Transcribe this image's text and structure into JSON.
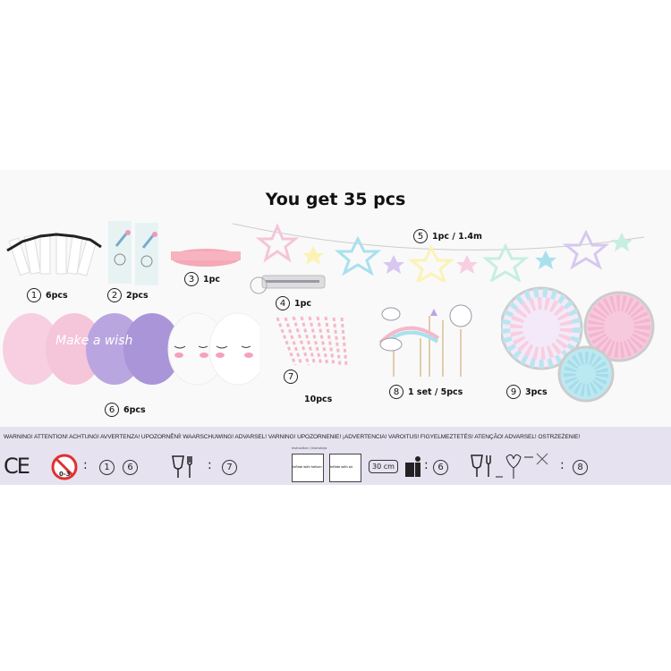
{
  "title": "You get 35 pcs",
  "items": [
    {
      "num": "1",
      "qty": "6pcs"
    },
    {
      "num": "2",
      "qty": "2pcs"
    },
    {
      "num": "3",
      "qty": "1pc"
    },
    {
      "num": "4",
      "qty": "1pc"
    },
    {
      "num": "5",
      "qty": "1pc / 1.4m"
    },
    {
      "num": "6",
      "qty": "6pcs"
    },
    {
      "num": "7",
      "qty": "10pcs"
    },
    {
      "num": "8",
      "qty": "1 set / 5pcs"
    },
    {
      "num": "9",
      "qty": "3pcs"
    }
  ],
  "stickers_label": "Stickers",
  "balloon_text": "Make a wish",
  "colors": {
    "pink": "#f7cfe0",
    "lilac": "#b9a6e0",
    "band": "#e6e2f0",
    "star_blue": "#a9e0ee",
    "star_yellow": "#fbf3b5",
    "star_mint": "#c7eee0"
  },
  "warning": {
    "text": "WARNING! ATTENTION! ACHTUNG! AVVERTENZA! UPOZORNĚNÍ! WAARSCHUWING! ADVARSEL!  VARNING! UPOZORNENIE! ¡ADVERTENCIA! VAROITUS! FIGYELMEZTETÉS! ATENÇÃO! ADVARSEL! OSTRZEŻENIE!",
    "ce": "CE",
    "age": "0-3",
    "groups": [
      [
        "1",
        "6"
      ],
      [
        "7"
      ],
      [
        "6"
      ],
      [
        "8"
      ]
    ],
    "size": "30 cm",
    "instr_title": "Instruction / Instrukcja",
    "helium": "Inflate with helium",
    "air": "Inflate with air"
  }
}
